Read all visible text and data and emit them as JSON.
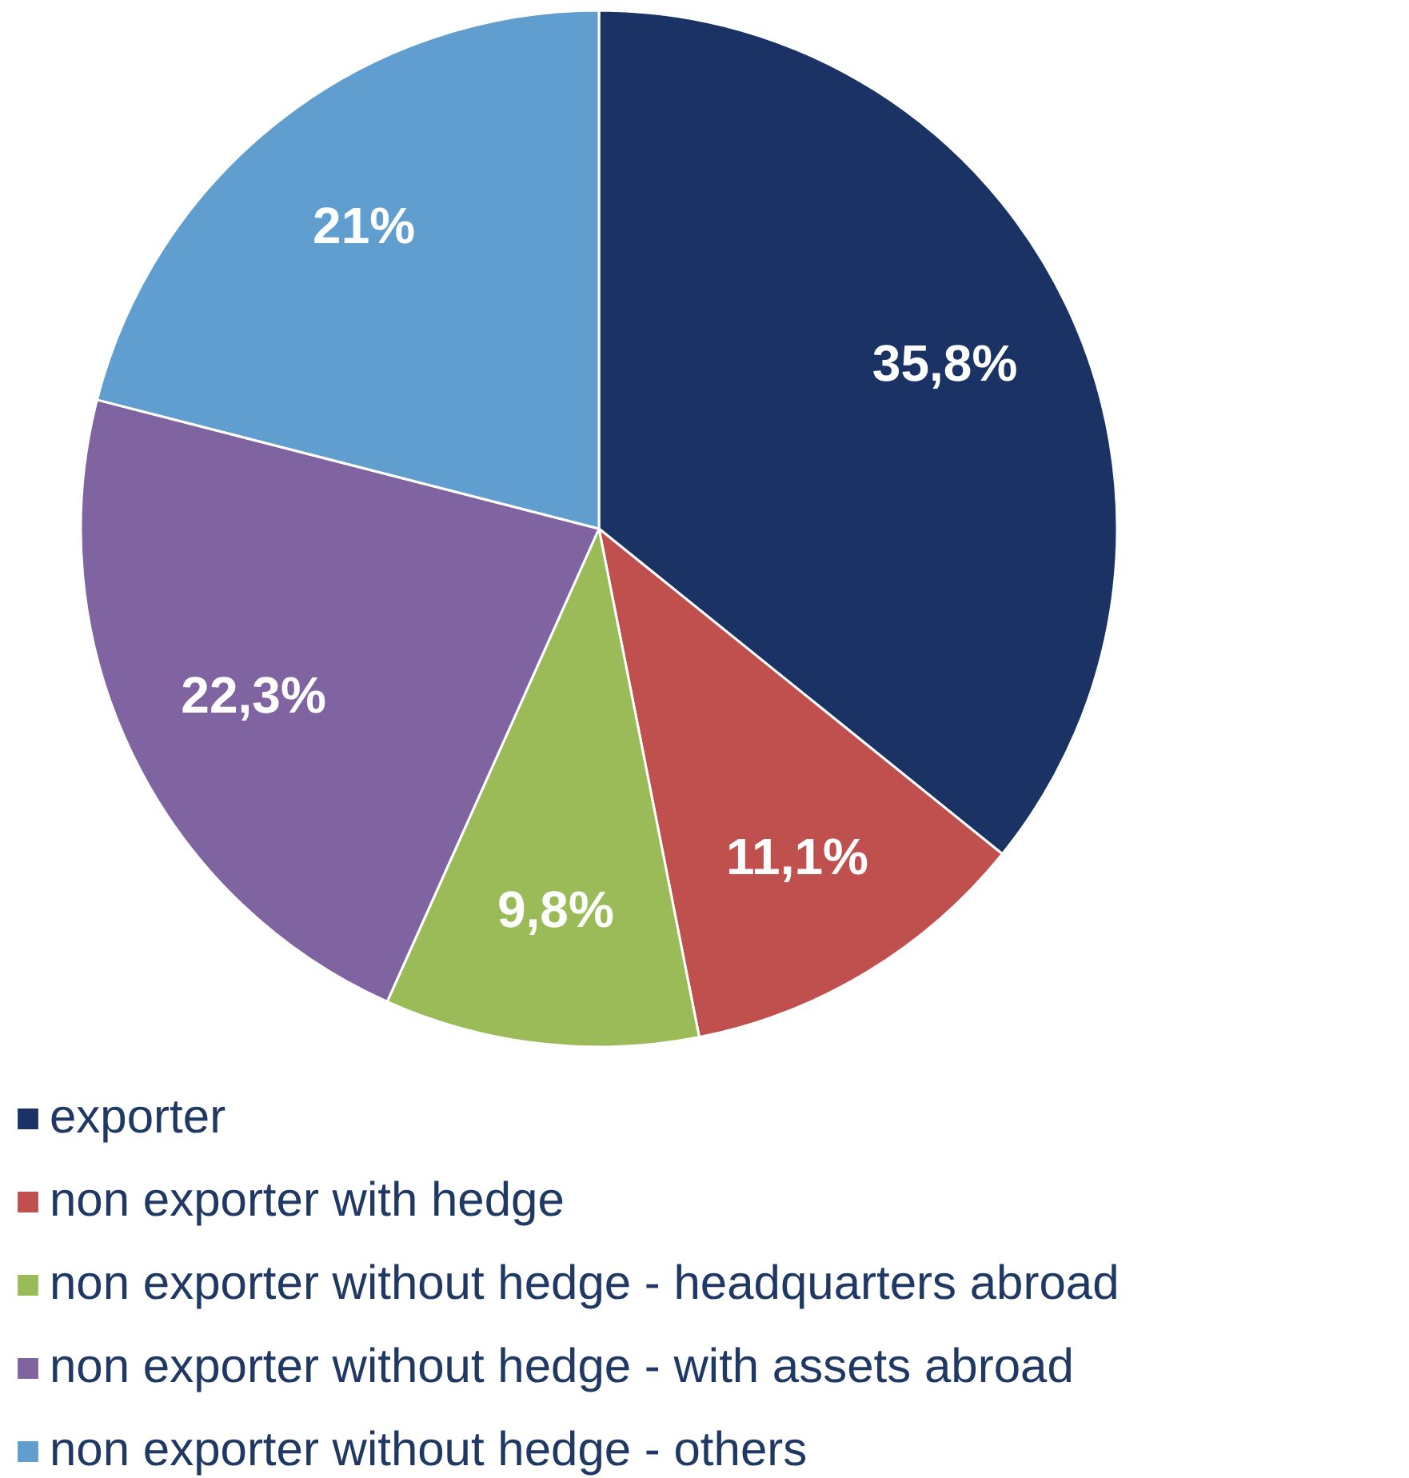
{
  "chart_data": {
    "type": "pie",
    "categories": [
      "exporter",
      "non exporter with hedge",
      "non exporter without hedge - headquarters abroad",
      "non exporter without hedge - with assets abroad",
      "non exporter without hedge - others"
    ],
    "values": [
      35.8,
      11.1,
      9.8,
      22.3,
      21
    ],
    "colors": [
      "#1b3264",
      "#c0504d",
      "#9bbb59",
      "#8064a2",
      "#5f9ecf"
    ],
    "value_labels": [
      "35,8%",
      "11,1%",
      "9,8%",
      "22,3%",
      "21%"
    ],
    "legend": "bottom"
  }
}
